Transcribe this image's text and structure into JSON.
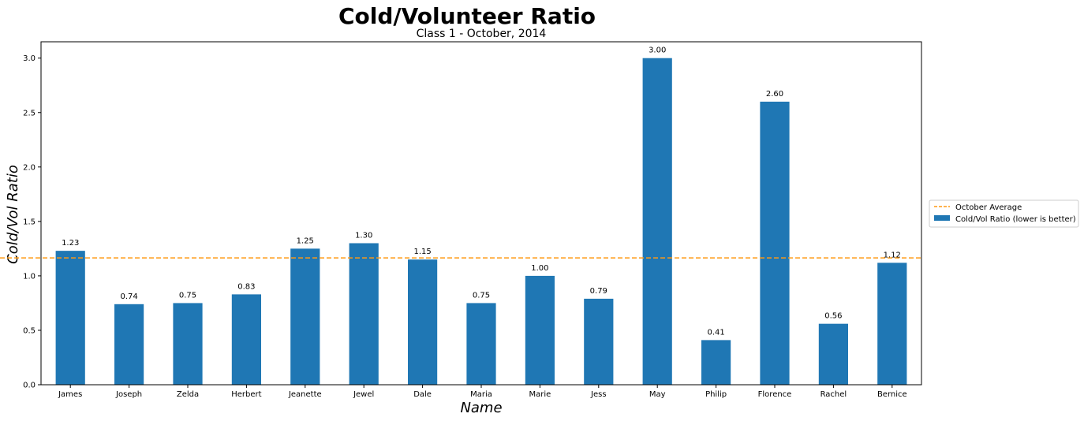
{
  "chart_data": {
    "type": "bar",
    "title": "Cold/Volunteer Ratio",
    "subtitle": "Class 1 - October, 2014",
    "xlabel": "Name",
    "ylabel": "Cold/Vol Ratio",
    "categories": [
      "James",
      "Joseph",
      "Zelda",
      "Herbert",
      "Jeanette",
      "Jewel",
      "Dale",
      "Maria",
      "Marie",
      "Jess",
      "May",
      "Philip",
      "Florence",
      "Rachel",
      "Bernice"
    ],
    "series": [
      {
        "name": "Cold/Vol Ratio (lower is better)",
        "values": [
          1.23,
          0.74,
          0.75,
          0.83,
          1.25,
          1.3,
          1.15,
          0.75,
          1.0,
          0.79,
          3.0,
          0.41,
          2.6,
          0.56,
          1.12
        ],
        "data_labels": [
          "1.23",
          "0.74",
          "0.75",
          "0.83",
          "1.25",
          "1.30",
          "1.15",
          "0.75",
          "1.00",
          "0.79",
          "3.00",
          "0.41",
          "2.60",
          "0.56",
          "1.12"
        ],
        "color": "#1f77b4"
      }
    ],
    "reference_line": {
      "name": "October Average",
      "value": 1.165,
      "style": "dashed",
      "color": "#ff9913"
    },
    "ylim": [
      0,
      3.15
    ],
    "yticks": [
      "0.0",
      "0.5",
      "1.0",
      "1.5",
      "2.0",
      "2.5",
      "3.0"
    ],
    "grid": false,
    "legend_position": "right, outside plot area"
  }
}
